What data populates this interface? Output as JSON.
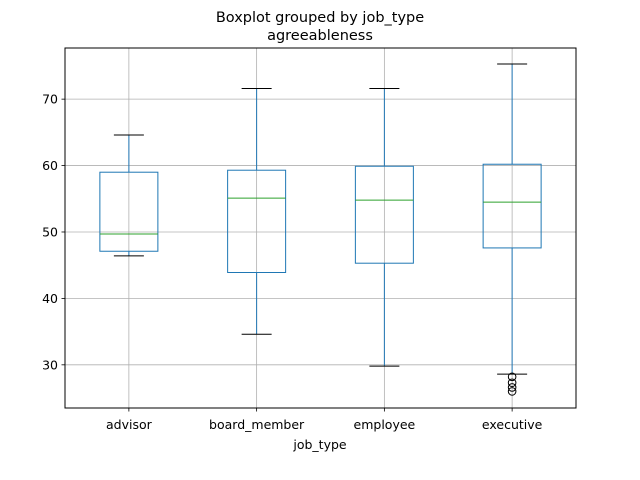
{
  "chart_data": {
    "type": "box",
    "suptitle": "Boxplot grouped by job_type",
    "title": "agreeableness",
    "xlabel": "job_type",
    "ylabel": "",
    "ylim": [
      23.5,
      77.7
    ],
    "yticks": [
      30,
      40,
      50,
      60,
      70
    ],
    "grid": true,
    "categories": [
      "advisor",
      "board_member",
      "employee",
      "executive"
    ],
    "boxes": [
      {
        "category": "advisor",
        "whisker_low": 46.4,
        "q1": 47.1,
        "median": 49.7,
        "q3": 59.0,
        "whisker_high": 64.6,
        "outliers": []
      },
      {
        "category": "board_member",
        "whisker_low": 34.6,
        "q1": 43.9,
        "median": 55.1,
        "q3": 59.3,
        "whisker_high": 71.6,
        "outliers": []
      },
      {
        "category": "employee",
        "whisker_low": 29.8,
        "q1": 45.3,
        "median": 54.8,
        "q3": 59.9,
        "whisker_high": 71.6,
        "outliers": []
      },
      {
        "category": "executive",
        "whisker_low": 28.6,
        "q1": 47.6,
        "median": 54.5,
        "q3": 60.2,
        "whisker_high": 75.3,
        "outliers": [
          28.2,
          27.3,
          26.6,
          26.0
        ]
      }
    ],
    "colors": {
      "box": "#1f77b4",
      "median": "#2ca02c",
      "cap": "#000000",
      "outlier": "#000000",
      "grid": "#b0b0b0"
    }
  }
}
